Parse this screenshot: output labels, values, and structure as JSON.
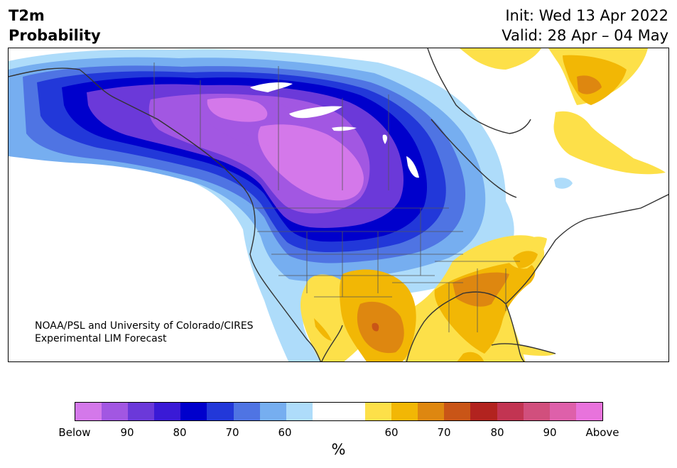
{
  "title": {
    "line1": "T2m",
    "line2": "Probability"
  },
  "header_right": {
    "init": "Init: Wed 13 Apr 2022",
    "valid": "Valid: 28 Apr – 04 May"
  },
  "credit": {
    "line1": "NOAA/PSL and University of Colorado/CIRES",
    "line2": "Experimental LIM Forecast"
  },
  "colorbar": {
    "colors": [
      "#d478ea",
      "#a257e2",
      "#6b39d9",
      "#3a1ad6",
      "#0000cc",
      "#2238d9",
      "#4f74e3",
      "#76aef0",
      "#aedcfa",
      "#ffffff",
      "#ffffff",
      "#fde049",
      "#f2b705",
      "#de8710",
      "#c95517",
      "#b2231f",
      "#c23452",
      "#d14f7d",
      "#de60aa",
      "#e873dc"
    ],
    "tick_labels": [
      "Below",
      "90",
      "80",
      "70",
      "60",
      "60",
      "70",
      "80",
      "90",
      "Above"
    ],
    "unit": "%"
  },
  "map": {
    "categories": {
      "below_90": "#d478ea",
      "below_80_90": "#a257e2",
      "below_70_80": "#6b39d9",
      "below_60_70": "#0000cc",
      "below_55_60": "#4f74e3",
      "below_50_55": "#76aef0",
      "below_40_50": "#aedcfa",
      "neutral": "#ffffff",
      "above_40_50": "#fde049",
      "above_50_60": "#f2b705",
      "above_60_70": "#de8710",
      "above_70_80": "#c95517"
    }
  }
}
